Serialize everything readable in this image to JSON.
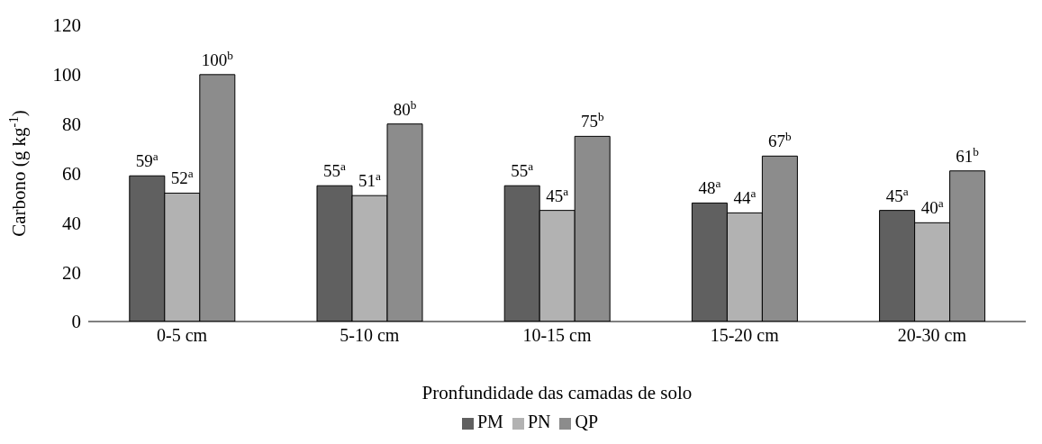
{
  "chart_data": {
    "type": "bar",
    "ylabel": "Carbono (g kg$^{-1}$)",
    "xlabel": "Pronfundidade das camadas de solo",
    "categories": [
      "0-5 cm",
      "5-10 cm",
      "10-15 cm",
      "15-20 cm",
      "20-30 cm"
    ],
    "series": [
      {
        "name": "PM",
        "color": "#606060",
        "values": [
          59,
          55,
          55,
          48,
          45
        ],
        "value_labels": [
          "59$^{a}$",
          "55$^{a}$",
          "55$^{a}$",
          "48$^{a}$",
          "45$^{a}$"
        ]
      },
      {
        "name": "PN",
        "color": "#b2b2b2",
        "values": [
          52,
          51,
          45,
          44,
          40
        ],
        "value_labels": [
          "52$^{a}$",
          "51$^{a}$",
          "45$^{a}$",
          "44$^{a}$",
          "40$^{a}$"
        ]
      },
      {
        "name": "QP",
        "color": "#8c8c8c",
        "values": [
          100,
          80,
          75,
          67,
          61
        ],
        "value_labels": [
          "100$^{b}$",
          "80$^{b}$",
          "75$^{b}$",
          "67$^{b}$",
          "61$^{b}$"
        ]
      }
    ],
    "ylim": [
      0,
      120
    ],
    "yticks": [
      0,
      20,
      40,
      60,
      80,
      100,
      120
    ],
    "grid": false,
    "legend": "bottom"
  }
}
